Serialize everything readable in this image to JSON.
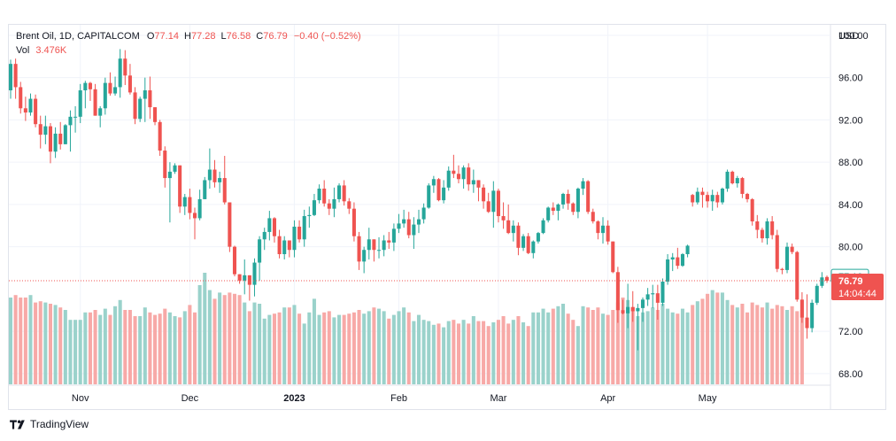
{
  "legend": {
    "symbol": "Brent Oil, 1D, CAPITALCOM",
    "open_label": "O",
    "open": "77.14",
    "high_label": "H",
    "high": "77.28",
    "low_label": "L",
    "low": "76.58",
    "close_label": "C",
    "close": "76.79",
    "change": "−0.40 (−0.52%)",
    "vol_label": "Vol",
    "vol": "3.476K"
  },
  "price_axis": {
    "currency": "USD",
    "ticks": [
      "100.00",
      "96.00",
      "92.00",
      "88.00",
      "84.00",
      "80.00",
      "72.00",
      "68.00"
    ],
    "last_price": "76.79",
    "countdown": "14:04:44",
    "prev_marker": "77.19"
  },
  "footer": {
    "brand": "TradingView"
  },
  "colors": {
    "up": "#26a69a",
    "down": "#ef5350",
    "up_vol": "#9ad2cb",
    "down_vol": "#f7a9a7",
    "grid": "#f0f3fa"
  },
  "chart_data": {
    "type": "candlestick",
    "title": "Brent Oil, 1D, CAPITALCOM",
    "ylabel": "USD",
    "ylim": [
      66.9,
      101.0
    ],
    "time_axis_labels": [
      "Nov",
      "Dec",
      "2023",
      "Feb",
      "Mar",
      "Apr",
      "May"
    ],
    "time_axis_label_index": [
      14,
      36,
      57,
      78,
      98,
      120,
      140
    ],
    "candles": [
      [
        94.8,
        97.7,
        94.0,
        97.3
      ],
      [
        97.3,
        97.8,
        94.0,
        95.1
      ],
      [
        95.1,
        95.6,
        92.6,
        93.1
      ],
      [
        93.1,
        94.2,
        91.9,
        92.7
      ],
      [
        92.7,
        94.5,
        92.4,
        94.0
      ],
      [
        94.0,
        94.4,
        91.3,
        91.6
      ],
      [
        91.6,
        92.4,
        89.3,
        90.6
      ],
      [
        90.6,
        92.4,
        89.7,
        91.4
      ],
      [
        91.4,
        91.7,
        87.9,
        89.0
      ],
      [
        89.0,
        91.3,
        88.4,
        90.7
      ],
      [
        90.7,
        91.8,
        89.2,
        89.7
      ],
      [
        89.7,
        91.6,
        89.7,
        91.5
      ],
      [
        91.5,
        92.9,
        89.0,
        92.3
      ],
      [
        92.3,
        93.3,
        90.8,
        92.3
      ],
      [
        92.3,
        95.4,
        91.7,
        94.8
      ],
      [
        94.8,
        95.7,
        93.1,
        95.5
      ],
      [
        95.5,
        95.6,
        93.8,
        94.9
      ],
      [
        94.9,
        95.4,
        92.4,
        92.4
      ],
      [
        92.4,
        93.3,
        91.3,
        93.1
      ],
      [
        93.1,
        96.0,
        92.5,
        95.5
      ],
      [
        95.5,
        96.5,
        94.3,
        94.5
      ],
      [
        94.5,
        96.1,
        94.3,
        95.1
      ],
      [
        95.1,
        98.7,
        94.1,
        97.8
      ],
      [
        97.8,
        98.6,
        95.3,
        96.2
      ],
      [
        96.2,
        97.3,
        94.4,
        94.6
      ],
      [
        94.6,
        95.1,
        91.6,
        92.1
      ],
      [
        92.1,
        94.2,
        91.8,
        94.0
      ],
      [
        94.0,
        96.0,
        91.8,
        94.8
      ],
      [
        94.8,
        96.1,
        92.1,
        93.2
      ],
      [
        93.2,
        93.2,
        91.5,
        91.8
      ],
      [
        91.8,
        92.0,
        88.6,
        89.1
      ],
      [
        89.1,
        89.5,
        85.6,
        86.5
      ],
      [
        86.5,
        88.0,
        82.3,
        87.1
      ],
      [
        87.1,
        87.9,
        86.9,
        87.7
      ],
      [
        87.7,
        87.7,
        83.2,
        83.8
      ],
      [
        83.8,
        85.0,
        83.0,
        84.7
      ],
      [
        84.7,
        85.5,
        82.6,
        83.2
      ],
      [
        83.2,
        83.7,
        80.7,
        82.7
      ],
      [
        82.7,
        85.4,
        82.5,
        84.5
      ],
      [
        84.5,
        86.6,
        84.5,
        86.3
      ],
      [
        86.3,
        89.3,
        85.5,
        87.3
      ],
      [
        87.3,
        88.2,
        85.6,
        86.1
      ],
      [
        86.1,
        87.1,
        85.1,
        86.5
      ],
      [
        86.5,
        88.6,
        84.0,
        84.2
      ],
      [
        84.2,
        84.2,
        79.5,
        80.0
      ],
      [
        80.0,
        80.1,
        77.2,
        77.4
      ],
      [
        77.4,
        77.4,
        76.5,
        76.8
      ],
      [
        76.8,
        78.8,
        75.5,
        77.3
      ],
      [
        77.3,
        77.3,
        74.9,
        76.4
      ],
      [
        76.4,
        78.9,
        75.3,
        78.5
      ],
      [
        78.5,
        81.0,
        76.8,
        80.7
      ],
      [
        80.7,
        81.8,
        79.7,
        81.4
      ],
      [
        81.4,
        83.4,
        80.6,
        82.7
      ],
      [
        82.7,
        82.8,
        80.4,
        81.0
      ],
      [
        81.0,
        81.6,
        78.9,
        79.3
      ],
      [
        79.3,
        81.0,
        78.8,
        80.6
      ],
      [
        80.6,
        80.6,
        79.0,
        79.7
      ],
      [
        79.7,
        82.5,
        79.0,
        81.9
      ],
      [
        81.9,
        82.5,
        80.4,
        80.7
      ],
      [
        80.7,
        83.5,
        80.0,
        82.9
      ],
      [
        82.9,
        83.8,
        81.8,
        83.0
      ],
      [
        83.0,
        85.0,
        82.9,
        84.4
      ],
      [
        84.4,
        85.9,
        84.1,
        85.5
      ],
      [
        85.5,
        86.3,
        83.8,
        84.1
      ],
      [
        84.1,
        84.5,
        83.0,
        83.6
      ],
      [
        83.6,
        85.6,
        82.8,
        84.5
      ],
      [
        84.5,
        86.0,
        84.2,
        85.8
      ],
      [
        85.8,
        86.3,
        83.9,
        84.3
      ],
      [
        84.3,
        84.6,
        83.1,
        83.6
      ],
      [
        83.6,
        84.2,
        80.5,
        81.0
      ],
      [
        81.0,
        81.4,
        77.8,
        78.6
      ],
      [
        78.6,
        80.0,
        77.5,
        79.7
      ],
      [
        79.7,
        81.8,
        78.8,
        80.7
      ],
      [
        80.7,
        80.7,
        78.6,
        79.7
      ],
      [
        79.7,
        80.9,
        78.9,
        79.7
      ],
      [
        79.7,
        81.1,
        79.1,
        80.6
      ],
      [
        80.6,
        81.4,
        79.8,
        80.4
      ],
      [
        80.4,
        82.2,
        79.6,
        81.7
      ],
      [
        81.7,
        83.1,
        81.3,
        82.2
      ],
      [
        82.2,
        83.5,
        81.8,
        82.6
      ],
      [
        82.6,
        83.3,
        80.8,
        81.1
      ],
      [
        81.1,
        82.8,
        79.8,
        82.1
      ],
      [
        82.1,
        83.5,
        81.3,
        82.6
      ],
      [
        82.6,
        84.1,
        82.2,
        83.7
      ],
      [
        83.7,
        86.0,
        83.6,
        85.8
      ],
      [
        85.8,
        86.7,
        85.1,
        86.4
      ],
      [
        86.4,
        86.5,
        84.3,
        84.4
      ],
      [
        84.4,
        86.3,
        84.1,
        85.6
      ],
      [
        85.6,
        87.6,
        85.3,
        87.2
      ],
      [
        87.2,
        88.7,
        86.5,
        86.9
      ],
      [
        86.9,
        87.7,
        86.0,
        86.4
      ],
      [
        86.4,
        87.7,
        85.5,
        87.5
      ],
      [
        87.5,
        87.9,
        85.3,
        85.9
      ],
      [
        85.9,
        87.3,
        85.1,
        86.3
      ],
      [
        86.3,
        86.3,
        84.3,
        85.6
      ],
      [
        85.6,
        85.9,
        83.6,
        84.3
      ],
      [
        84.3,
        85.1,
        83.2,
        83.3
      ],
      [
        83.3,
        86.2,
        81.8,
        85.3
      ],
      [
        85.3,
        85.5,
        82.3,
        82.9
      ],
      [
        82.9,
        84.2,
        81.7,
        82.5
      ],
      [
        82.5,
        84.0,
        81.2,
        81.3
      ],
      [
        81.3,
        82.5,
        80.5,
        82.0
      ],
      [
        82.0,
        82.3,
        79.2,
        79.9
      ],
      [
        79.9,
        81.2,
        79.6,
        81.0
      ],
      [
        81.0,
        81.3,
        79.3,
        79.4
      ],
      [
        79.4,
        80.6,
        78.9,
        80.5
      ],
      [
        80.5,
        81.4,
        80.3,
        81.3
      ],
      [
        81.3,
        82.7,
        81.2,
        82.5
      ],
      [
        82.5,
        83.8,
        82.3,
        83.7
      ],
      [
        83.7,
        84.2,
        83.0,
        83.4
      ],
      [
        83.4,
        84.1,
        82.5,
        84.0
      ],
      [
        84.0,
        85.1,
        83.6,
        85.0
      ],
      [
        85.0,
        85.4,
        83.5,
        84.1
      ],
      [
        84.1,
        84.2,
        83.0,
        83.3
      ],
      [
        83.3,
        85.6,
        82.7,
        85.5
      ],
      [
        85.5,
        86.5,
        84.9,
        86.2
      ],
      [
        86.2,
        86.3,
        83.1,
        83.3
      ],
      [
        83.3,
        83.6,
        82.2,
        82.4
      ],
      [
        82.4,
        82.5,
        80.7,
        81.3
      ],
      [
        81.3,
        82.8,
        80.3,
        82.0
      ],
      [
        82.0,
        82.5,
        80.2,
        80.5
      ],
      [
        80.5,
        80.5,
        77.5,
        77.6
      ],
      [
        77.6,
        78.1,
        72.8,
        74.0
      ],
      [
        74.0,
        75.0,
        73.6,
        73.7
      ],
      [
        73.7,
        76.5,
        72.3,
        74.3
      ],
      [
        74.3,
        75.8,
        72.9,
        73.9
      ],
      [
        73.9,
        74.6,
        70.2,
        74.2
      ],
      [
        74.2,
        75.2,
        72.9,
        75.0
      ],
      [
        75.0,
        76.1,
        74.4,
        75.5
      ],
      [
        75.5,
        76.4,
        74.2,
        75.6
      ],
      [
        75.6,
        76.4,
        73.1,
        74.7
      ],
      [
        74.7,
        77.0,
        74.4,
        76.7
      ],
      [
        76.7,
        79.3,
        76.4,
        78.8
      ],
      [
        78.8,
        79.4,
        77.7,
        79.0
      ],
      [
        79.0,
        79.9,
        77.9,
        78.2
      ],
      [
        78.2,
        79.4,
        78.1,
        79.3
      ],
      [
        79.3,
        80.2,
        79.0,
        80.1
      ],
      [
        84.9,
        85.0,
        83.8,
        84.2
      ],
      [
        84.2,
        85.6,
        84.0,
        85.2
      ],
      [
        85.2,
        85.6,
        83.7,
        84.9
      ],
      [
        84.9,
        85.2,
        83.7,
        84.3
      ],
      [
        84.3,
        85.4,
        83.4,
        84.9
      ],
      [
        84.9,
        85.2,
        83.7,
        84.2
      ],
      [
        84.2,
        85.6,
        84.0,
        85.5
      ],
      [
        85.5,
        87.3,
        85.2,
        87.1
      ],
      [
        87.1,
        87.2,
        85.9,
        86.0
      ],
      [
        86.0,
        86.7,
        85.6,
        86.5
      ],
      [
        86.5,
        86.6,
        84.6,
        85.0
      ],
      [
        85.0,
        85.1,
        84.2,
        84.5
      ],
      [
        84.5,
        84.6,
        82.0,
        82.4
      ],
      [
        82.4,
        83.0,
        80.8,
        81.6
      ],
      [
        81.6,
        81.8,
        80.4,
        80.8
      ],
      [
        80.8,
        82.7,
        80.2,
        82.4
      ],
      [
        82.4,
        82.9,
        80.7,
        81.1
      ],
      [
        81.1,
        81.6,
        77.6,
        77.9
      ],
      [
        77.9,
        78.0,
        77.4,
        77.8
      ],
      [
        77.8,
        80.4,
        77.5,
        80.0
      ],
      [
        80.0,
        80.3,
        79.3,
        79.5
      ],
      [
        79.5,
        79.6,
        74.8,
        75.0
      ],
      [
        75.0,
        75.7,
        72.8,
        73.3
      ],
      [
        73.3,
        75.5,
        71.3,
        72.3
      ],
      [
        72.3,
        75.0,
        71.9,
        74.7
      ],
      [
        74.7,
        76.5,
        74.5,
        76.3
      ],
      [
        76.3,
        77.6,
        76.1,
        77.1
      ],
      [
        77.14,
        77.28,
        76.58,
        76.79
      ]
    ],
    "volume_relative": [
      0.7,
      0.72,
      0.7,
      0.7,
      0.72,
      0.66,
      0.67,
      0.66,
      0.65,
      0.64,
      0.62,
      0.6,
      0.52,
      0.52,
      0.52,
      0.58,
      0.58,
      0.6,
      0.56,
      0.61,
      0.56,
      0.63,
      0.68,
      0.6,
      0.6,
      0.55,
      0.55,
      0.62,
      0.58,
      0.56,
      0.57,
      0.61,
      0.58,
      0.55,
      0.54,
      0.59,
      0.64,
      0.58,
      0.8,
      0.9,
      0.76,
      0.69,
      0.74,
      0.72,
      0.74,
      0.73,
      0.72,
      0.66,
      0.59,
      0.66,
      0.65,
      0.53,
      0.56,
      0.57,
      0.58,
      0.62,
      0.62,
      0.64,
      0.57,
      0.49,
      0.58,
      0.69,
      0.56,
      0.58,
      0.59,
      0.54,
      0.56,
      0.56,
      0.57,
      0.58,
      0.6,
      0.57,
      0.59,
      0.62,
      0.61,
      0.59,
      0.53,
      0.56,
      0.59,
      0.62,
      0.58,
      0.51,
      0.56,
      0.52,
      0.51,
      0.48,
      0.49,
      0.46,
      0.51,
      0.52,
      0.49,
      0.52,
      0.49,
      0.55,
      0.51,
      0.51,
      0.47,
      0.5,
      0.52,
      0.55,
      0.49,
      0.52,
      0.55,
      0.5,
      0.47,
      0.58,
      0.58,
      0.61,
      0.58,
      0.61,
      0.63,
      0.65,
      0.57,
      0.52,
      0.47,
      0.63,
      0.62,
      0.6,
      0.62,
      0.57,
      0.56,
      0.6,
      0.66,
      0.7,
      0.68,
      0.62,
      0.55,
      0.58,
      0.59,
      0.62,
      0.6,
      0.65,
      0.61,
      0.58,
      0.57,
      0.61,
      0.58,
      0.64,
      0.67,
      0.69,
      0.73,
      0.76,
      0.74,
      0.74,
      0.68,
      0.64,
      0.62,
      0.65,
      0.58,
      0.66,
      0.64,
      0.62,
      0.66,
      0.61,
      0.64,
      0.63,
      0.6,
      0.63,
      0.59,
      0.6
    ]
  }
}
